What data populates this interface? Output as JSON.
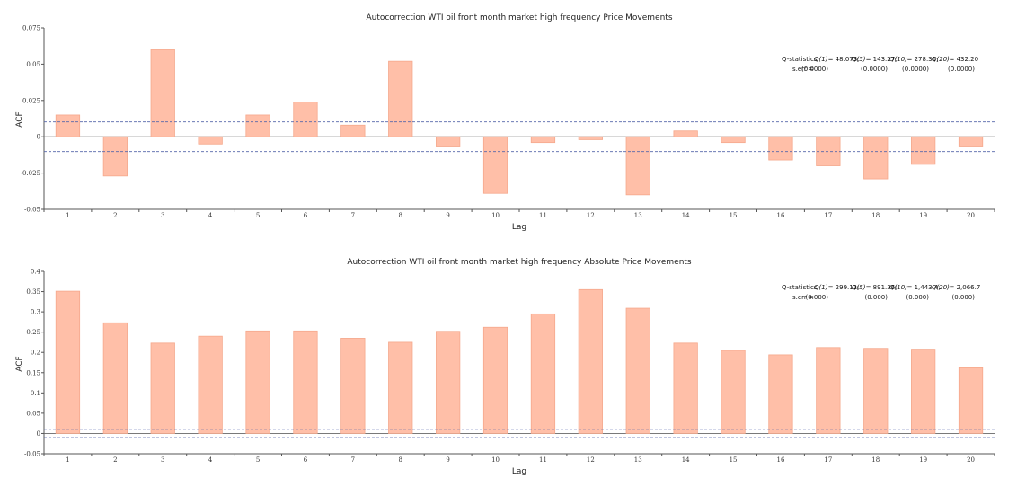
{
  "chart_data": [
    {
      "type": "bar",
      "title": "Autocorrection WTI oil front month market high frequency Price Movements",
      "xlabel": "Lag",
      "ylabel": "ACF",
      "categories": [
        "1",
        "2",
        "3",
        "4",
        "5",
        "6",
        "7",
        "8",
        "9",
        "10",
        "11",
        "12",
        "13",
        "14",
        "15",
        "16",
        "17",
        "18",
        "19",
        "20"
      ],
      "values": [
        0.015,
        -0.027,
        0.06,
        -0.005,
        0.015,
        0.024,
        0.008,
        0.052,
        -0.007,
        -0.039,
        -0.004,
        -0.002,
        -0.04,
        0.004,
        -0.004,
        -0.016,
        -0.02,
        -0.029,
        -0.019,
        -0.007
      ],
      "ylim": [
        -0.05,
        0.075
      ],
      "yticks": [
        -0.05,
        -0.025,
        0,
        0.025,
        0.05,
        0.075
      ],
      "ytick_labels": [
        "-0.05",
        "-0.025",
        "0",
        "0.025",
        "0.05",
        "0.075"
      ],
      "conf_band": 0.0102,
      "qstats": {
        "label": "Q-statistics:",
        "serr_label": "s.err =",
        "items": [
          {
            "name": "Q(1)",
            "eq": "= 48.073;",
            "se": "(0.0000)"
          },
          {
            "name": "Q(5)",
            "eq": "= 143.27;",
            "se": "(0.0000)"
          },
          {
            "name": "Q(10)",
            "eq": "= 278.31;",
            "se": "(0.0000)"
          },
          {
            "name": "Q(20)",
            "eq": "= 432.20",
            "se": "(0.0000)"
          }
        ]
      }
    },
    {
      "type": "bar",
      "title": "Autocorrection WTI oil front month market high frequency Absolute Price Movements",
      "xlabel": "Lag",
      "ylabel": "ACF",
      "categories": [
        "1",
        "2",
        "3",
        "4",
        "5",
        "6",
        "7",
        "8",
        "9",
        "10",
        "11",
        "12",
        "13",
        "14",
        "15",
        "16",
        "17",
        "18",
        "19",
        "20"
      ],
      "values": [
        0.351,
        0.273,
        0.223,
        0.24,
        0.253,
        0.253,
        0.235,
        0.225,
        0.252,
        0.262,
        0.295,
        0.355,
        0.309,
        0.223,
        0.205,
        0.194,
        0.212,
        0.21,
        0.208,
        0.162
      ],
      "ylim": [
        -0.05,
        0.4
      ],
      "yticks": [
        -0.05,
        0,
        0.05,
        0.1,
        0.15,
        0.2,
        0.25,
        0.3,
        0.35,
        0.4
      ],
      "ytick_labels": [
        "-0.05",
        "0",
        "0.05",
        "0.1",
        "0.15",
        "0.2",
        "0.25",
        "0.3",
        "0.35",
        "0.4"
      ],
      "conf_band": 0.0102,
      "qstats": {
        "label": "Q-statistics:",
        "serr_label": "s.err =",
        "items": [
          {
            "name": "Q(1)",
            "eq": "= 299.11;",
            "se": "(0.000)"
          },
          {
            "name": "Q(5)",
            "eq": "= 891.36;",
            "se": "(0.000)"
          },
          {
            "name": "Q(10)",
            "eq": "= 1,443.4;",
            "se": "(0.000)"
          },
          {
            "name": "Q(20)",
            "eq": "= 2,066.7",
            "se": "(0.000)"
          }
        ]
      }
    }
  ]
}
